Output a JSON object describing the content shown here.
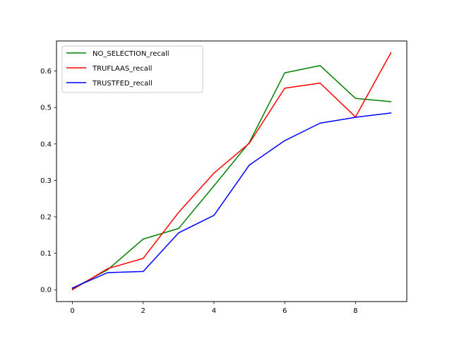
{
  "chart_data": {
    "type": "line",
    "x": [
      0,
      1,
      2,
      3,
      4,
      5,
      6,
      7,
      8,
      9
    ],
    "xlim": [
      -0.45,
      9.45
    ],
    "ylim": [
      -0.0325,
      0.6825
    ],
    "xticks": [
      "0",
      "2",
      "4",
      "6",
      "8"
    ],
    "yticks": [
      "0.0",
      "0.1",
      "0.2",
      "0.3",
      "0.4",
      "0.5",
      "0.6"
    ],
    "grid": false,
    "legend_position": "upper-left",
    "series": [
      {
        "name": "NO_SELECTION_recall",
        "color": "#008000",
        "values": [
          0.003,
          0.055,
          0.139,
          0.168,
          0.285,
          0.404,
          0.595,
          0.615,
          0.525,
          0.516
        ]
      },
      {
        "name": "TRUFLAAS_recall",
        "color": "#ff0000",
        "values": [
          0.0,
          0.058,
          0.086,
          0.212,
          0.32,
          0.402,
          0.553,
          0.567,
          0.474,
          0.65
        ]
      },
      {
        "name": "TRUSTFED_recall",
        "color": "#0000ff",
        "values": [
          0.005,
          0.047,
          0.05,
          0.156,
          0.204,
          0.342,
          0.409,
          0.457,
          0.473,
          0.485
        ]
      }
    ]
  }
}
